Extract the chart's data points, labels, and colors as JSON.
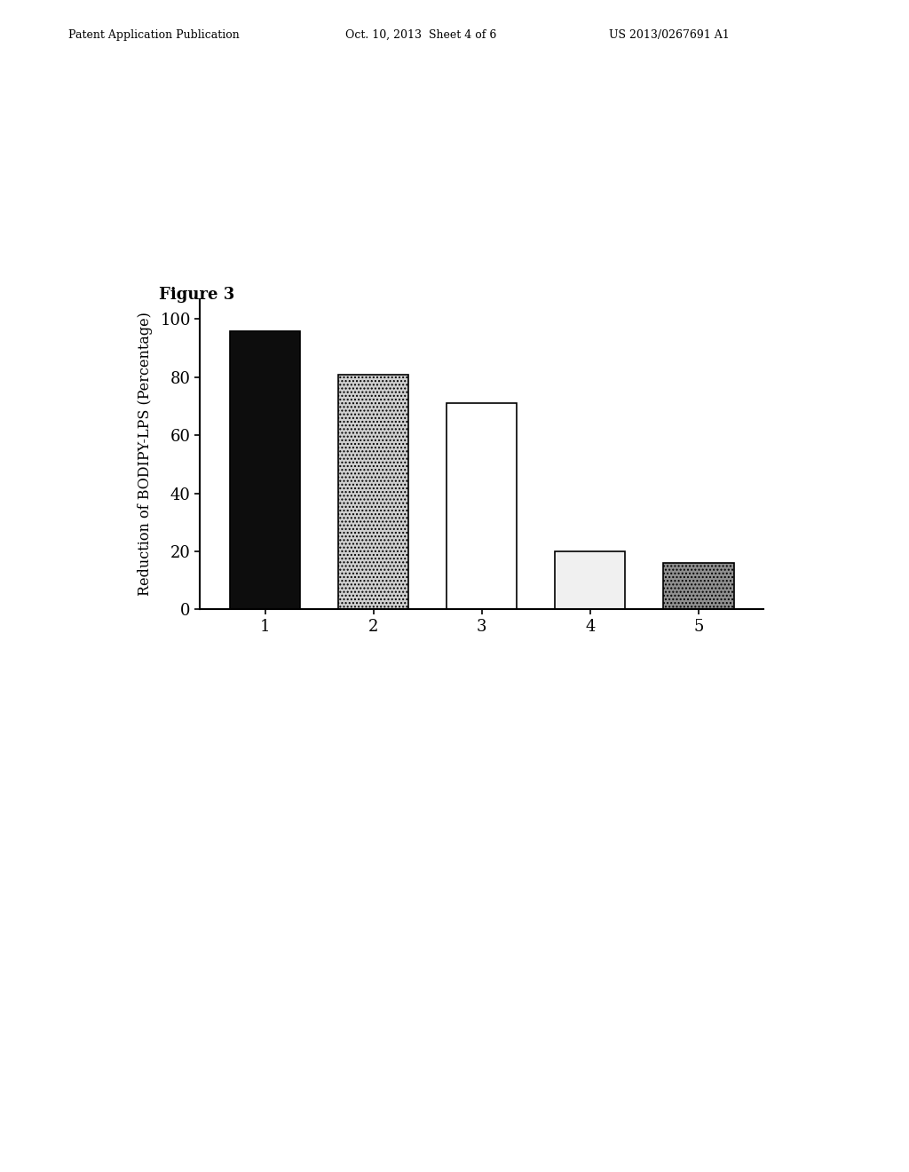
{
  "categories": [
    "1",
    "2",
    "3",
    "4",
    "5"
  ],
  "values": [
    96,
    81,
    71,
    20,
    16
  ],
  "ylabel": "Reduction of BODIPY-LPS (Percentage)",
  "ylim": [
    0,
    107
  ],
  "yticks": [
    0,
    20,
    40,
    60,
    80,
    100
  ],
  "bar_width": 0.65,
  "background_color": "#ffffff",
  "header_left": "Patent Application Publication",
  "header_mid": "Oct. 10, 2013  Sheet 4 of 6",
  "header_right": "US 2013/0267691 A1",
  "figure_label": "Figure 3",
  "bar_configs": [
    {
      "fc": "#0d0d0d",
      "ec": "#000000",
      "hatch": null,
      "lw": 1.2
    },
    {
      "fc": "#d0d0d0",
      "ec": "#000000",
      "hatch": "....",
      "lw": 1.2
    },
    {
      "fc": "#ffffff",
      "ec": "#000000",
      "hatch": null,
      "lw": 1.2
    },
    {
      "fc": "#f0f0f0",
      "ec": "#000000",
      "hatch": null,
      "lw": 1.2
    },
    {
      "fc": "#909090",
      "ec": "#000000",
      "hatch": "....",
      "lw": 1.2
    }
  ]
}
